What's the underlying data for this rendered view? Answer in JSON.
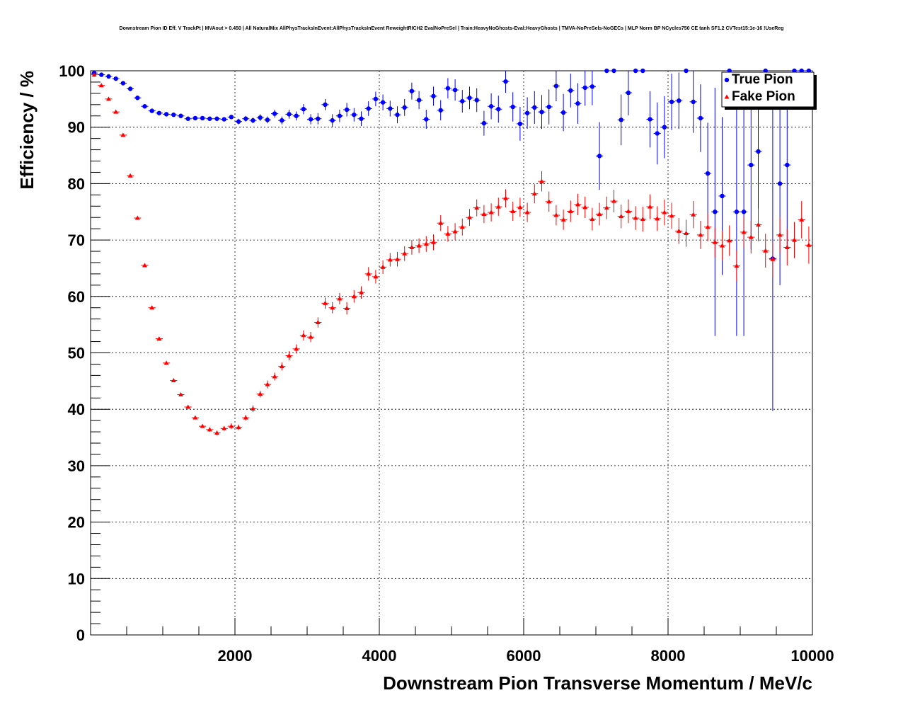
{
  "chart_data": {
    "type": "scatter",
    "title": "Downstream Pion ID Eff. V TrackPt | MVAout > 0.450 | All NaturalMix AllPhysTracksInEvent:AllPhysTracksInEvent ReweightRICH2 EvalNoPreSel | Train:HeavyNoGhosts-Eval:HeavyGhosts | TMVA-NoPreSels-NoGECs | MLP Norm BP NCycles750 CE tanh SF1.2 CVTest15:1e-16 !UseReg",
    "xlabel": "Downstream Pion Transverse Momentum / MeV/c",
    "ylabel": "Efficiency / %",
    "xlim": [
      0,
      10000
    ],
    "ylim": [
      0,
      100
    ],
    "x_ticks": [
      2000,
      4000,
      6000,
      8000,
      10000
    ],
    "y_ticks": [
      0,
      10,
      20,
      30,
      40,
      50,
      60,
      70,
      80,
      90,
      100
    ],
    "grid": true,
    "legend_position": "top-right",
    "colors": {
      "true_pion": "#0000ff",
      "fake_pion": "#ff0000"
    },
    "series": [
      {
        "name": "True Pion",
        "marker": "circle",
        "color": "#0000ff",
        "points": [
          {
            "x": 50,
            "y": 99.6,
            "err": 0
          },
          {
            "x": 150,
            "y": 99.3,
            "err": 0
          },
          {
            "x": 250,
            "y": 99.0,
            "err": 0
          },
          {
            "x": 350,
            "y": 98.6,
            "err": 0
          },
          {
            "x": 450,
            "y": 97.8,
            "err": 0
          },
          {
            "x": 550,
            "y": 96.8,
            "err": 0
          },
          {
            "x": 650,
            "y": 95.2,
            "err": 0
          },
          {
            "x": 750,
            "y": 93.7,
            "err": 0.3
          },
          {
            "x": 850,
            "y": 92.9,
            "err": 0.3
          },
          {
            "x": 950,
            "y": 92.5,
            "err": 0.3
          },
          {
            "x": 1050,
            "y": 92.3,
            "err": 0.3
          },
          {
            "x": 1150,
            "y": 92.2,
            "err": 0.3
          },
          {
            "x": 1250,
            "y": 92.0,
            "err": 0.3
          },
          {
            "x": 1350,
            "y": 91.5,
            "err": 0.3
          },
          {
            "x": 1450,
            "y": 91.6,
            "err": 0.3
          },
          {
            "x": 1550,
            "y": 91.6,
            "err": 0.3
          },
          {
            "x": 1650,
            "y": 91.5,
            "err": 0.3
          },
          {
            "x": 1750,
            "y": 91.5,
            "err": 0.3
          },
          {
            "x": 1850,
            "y": 91.4,
            "err": 0.3
          },
          {
            "x": 1950,
            "y": 91.8,
            "err": 0.4
          },
          {
            "x": 2050,
            "y": 91.0,
            "err": 0.5
          },
          {
            "x": 2150,
            "y": 91.5,
            "err": 0.5
          },
          {
            "x": 2250,
            "y": 91.2,
            "err": 0.5
          },
          {
            "x": 2350,
            "y": 91.7,
            "err": 0.6
          },
          {
            "x": 2450,
            "y": 91.3,
            "err": 0.6
          },
          {
            "x": 2550,
            "y": 92.4,
            "err": 0.7
          },
          {
            "x": 2650,
            "y": 91.2,
            "err": 0.7
          },
          {
            "x": 2750,
            "y": 92.3,
            "err": 0.8
          },
          {
            "x": 2850,
            "y": 92.0,
            "err": 0.8
          },
          {
            "x": 2950,
            "y": 93.2,
            "err": 0.9
          },
          {
            "x": 3050,
            "y": 91.4,
            "err": 0.9
          },
          {
            "x": 3150,
            "y": 91.5,
            "err": 1.0
          },
          {
            "x": 3250,
            "y": 94.0,
            "err": 1.0
          },
          {
            "x": 3350,
            "y": 91.2,
            "err": 1.1
          },
          {
            "x": 3450,
            "y": 92.0,
            "err": 1.1
          },
          {
            "x": 3550,
            "y": 93.1,
            "err": 1.2
          },
          {
            "x": 3650,
            "y": 92.2,
            "err": 1.2
          },
          {
            "x": 3750,
            "y": 91.5,
            "err": 1.3
          },
          {
            "x": 3850,
            "y": 93.3,
            "err": 1.3
          },
          {
            "x": 3950,
            "y": 95.0,
            "err": 1.3
          },
          {
            "x": 4050,
            "y": 94.4,
            "err": 1.4
          },
          {
            "x": 4150,
            "y": 93.3,
            "err": 1.4
          },
          {
            "x": 4250,
            "y": 92.2,
            "err": 1.5
          },
          {
            "x": 4350,
            "y": 93.5,
            "err": 1.5
          },
          {
            "x": 4450,
            "y": 96.4,
            "err": 1.5
          },
          {
            "x": 4550,
            "y": 94.8,
            "err": 1.6
          },
          {
            "x": 4650,
            "y": 91.4,
            "err": 1.7
          },
          {
            "x": 4750,
            "y": 95.5,
            "err": 1.7
          },
          {
            "x": 4850,
            "y": 93.0,
            "err": 1.8
          },
          {
            "x": 4950,
            "y": 96.9,
            "err": 1.8
          },
          {
            "x": 5050,
            "y": 96.6,
            "err": 1.9
          },
          {
            "x": 5150,
            "y": 94.6,
            "err": 2.0
          },
          {
            "x": 5250,
            "y": 95.2,
            "err": 2.0
          },
          {
            "x": 5350,
            "y": 94.8,
            "err": 2.1
          },
          {
            "x": 5450,
            "y": 90.7,
            "err": 2.2
          },
          {
            "x": 5550,
            "y": 93.7,
            "err": 2.3
          },
          {
            "x": 5650,
            "y": 93.2,
            "err": 2.4
          },
          {
            "x": 5750,
            "y": 98.1,
            "err": 2.0
          },
          {
            "x": 5850,
            "y": 93.6,
            "err": 2.6
          },
          {
            "x": 5950,
            "y": 90.6,
            "err": 3.0
          },
          {
            "x": 6050,
            "y": 92.5,
            "err": 2.8
          },
          {
            "x": 6150,
            "y": 93.5,
            "err": 2.9
          },
          {
            "x": 6250,
            "y": 92.7,
            "err": 3.0
          },
          {
            "x": 6350,
            "y": 93.6,
            "err": 3.1
          },
          {
            "x": 6450,
            "y": 97.3,
            "err": 2.7
          },
          {
            "x": 6550,
            "y": 92.6,
            "err": 3.3
          },
          {
            "x": 6650,
            "y": 96.5,
            "err": 3.0
          },
          {
            "x": 6750,
            "y": 94.2,
            "err": 3.6
          },
          {
            "x": 6850,
            "y": 97.0,
            "err": 3.2
          },
          {
            "x": 6950,
            "y": 97.2,
            "err": 3.3
          },
          {
            "x": 7050,
            "y": 84.9,
            "err": 6.0
          },
          {
            "x": 7150,
            "y": 100.0,
            "err": 0
          },
          {
            "x": 7250,
            "y": 100.0,
            "err": 0
          },
          {
            "x": 7350,
            "y": 91.3,
            "err": 4.5
          },
          {
            "x": 7450,
            "y": 96.1,
            "err": 4.0
          },
          {
            "x": 7550,
            "y": 100.0,
            "err": 0
          },
          {
            "x": 7650,
            "y": 100.0,
            "err": 0
          },
          {
            "x": 7750,
            "y": 91.4,
            "err": 5.0
          },
          {
            "x": 7850,
            "y": 88.9,
            "err": 5.5
          },
          {
            "x": 7950,
            "y": 90.0,
            "err": 5.5
          },
          {
            "x": 8050,
            "y": 94.5,
            "err": 5.0
          },
          {
            "x": 8150,
            "y": 94.7,
            "err": 5.0
          },
          {
            "x": 8250,
            "y": 100.0,
            "err": 0
          },
          {
            "x": 8350,
            "y": 94.5,
            "err": 5.5
          },
          {
            "x": 8450,
            "y": 91.6,
            "err": 6.0
          },
          {
            "x": 8550,
            "y": 81.8,
            "err": 9.0
          },
          {
            "x": 8650,
            "y": 75.0,
            "err": 22.0
          },
          {
            "x": 8750,
            "y": 77.8,
            "err": 14.0
          },
          {
            "x": 8850,
            "y": 100.0,
            "err": 0
          },
          {
            "x": 8950,
            "y": 75.0,
            "err": 22.0
          },
          {
            "x": 9050,
            "y": 75.0,
            "err": 22.0
          },
          {
            "x": 9150,
            "y": 83.3,
            "err": 15.0
          },
          {
            "x": 9250,
            "y": 85.7,
            "err": 13.0
          },
          {
            "x": 9350,
            "y": 100.0,
            "err": 0
          },
          {
            "x": 9450,
            "y": 66.7,
            "err": 27.0
          },
          {
            "x": 9550,
            "y": 80.0,
            "err": 18.0
          },
          {
            "x": 9650,
            "y": 83.3,
            "err": 15.0
          },
          {
            "x": 9750,
            "y": 100.0,
            "err": 0
          },
          {
            "x": 9850,
            "y": 100.0,
            "err": 0
          },
          {
            "x": 9950,
            "y": 100.0,
            "err": 0
          }
        ]
      },
      {
        "name": "Fake Pion",
        "marker": "triangle",
        "color": "#ff0000",
        "points": [
          {
            "x": 50,
            "y": 99.3,
            "err": 0.4
          },
          {
            "x": 150,
            "y": 97.4,
            "err": 0.3
          },
          {
            "x": 250,
            "y": 95.0,
            "err": 0.3
          },
          {
            "x": 350,
            "y": 92.7,
            "err": 0.3
          },
          {
            "x": 450,
            "y": 88.6,
            "err": 0.3
          },
          {
            "x": 550,
            "y": 81.4,
            "err": 0.3
          },
          {
            "x": 650,
            "y": 73.9,
            "err": 0.3
          },
          {
            "x": 750,
            "y": 65.5,
            "err": 0.3
          },
          {
            "x": 850,
            "y": 58.0,
            "err": 0.3
          },
          {
            "x": 950,
            "y": 52.5,
            "err": 0.3
          },
          {
            "x": 1050,
            "y": 48.2,
            "err": 0.3
          },
          {
            "x": 1150,
            "y": 45.1,
            "err": 0.3
          },
          {
            "x": 1250,
            "y": 42.6,
            "err": 0.3
          },
          {
            "x": 1350,
            "y": 40.4,
            "err": 0.3
          },
          {
            "x": 1450,
            "y": 38.5,
            "err": 0.3
          },
          {
            "x": 1550,
            "y": 37.0,
            "err": 0.3
          },
          {
            "x": 1650,
            "y": 36.4,
            "err": 0.4
          },
          {
            "x": 1750,
            "y": 35.8,
            "err": 0.4
          },
          {
            "x": 1850,
            "y": 36.6,
            "err": 0.4
          },
          {
            "x": 1950,
            "y": 37.0,
            "err": 0.5
          },
          {
            "x": 2050,
            "y": 36.8,
            "err": 0.5
          },
          {
            "x": 2150,
            "y": 38.5,
            "err": 0.5
          },
          {
            "x": 2250,
            "y": 40.1,
            "err": 0.6
          },
          {
            "x": 2350,
            "y": 42.7,
            "err": 0.6
          },
          {
            "x": 2450,
            "y": 44.4,
            "err": 0.7
          },
          {
            "x": 2550,
            "y": 45.8,
            "err": 0.7
          },
          {
            "x": 2650,
            "y": 47.6,
            "err": 0.7
          },
          {
            "x": 2750,
            "y": 49.5,
            "err": 0.8
          },
          {
            "x": 2850,
            "y": 50.7,
            "err": 0.8
          },
          {
            "x": 2950,
            "y": 53.1,
            "err": 0.9
          },
          {
            "x": 3050,
            "y": 52.8,
            "err": 0.9
          },
          {
            "x": 3150,
            "y": 55.4,
            "err": 0.9
          },
          {
            "x": 3250,
            "y": 58.8,
            "err": 1.0
          },
          {
            "x": 3350,
            "y": 58.0,
            "err": 1.0
          },
          {
            "x": 3450,
            "y": 59.6,
            "err": 1.0
          },
          {
            "x": 3550,
            "y": 57.9,
            "err": 1.1
          },
          {
            "x": 3650,
            "y": 60.0,
            "err": 1.1
          },
          {
            "x": 3750,
            "y": 60.7,
            "err": 1.1
          },
          {
            "x": 3850,
            "y": 64.0,
            "err": 1.2
          },
          {
            "x": 3950,
            "y": 63.5,
            "err": 1.2
          },
          {
            "x": 4050,
            "y": 65.2,
            "err": 1.2
          },
          {
            "x": 4150,
            "y": 66.5,
            "err": 1.2
          },
          {
            "x": 4250,
            "y": 66.6,
            "err": 1.3
          },
          {
            "x": 4350,
            "y": 67.6,
            "err": 1.3
          },
          {
            "x": 4450,
            "y": 68.7,
            "err": 1.3
          },
          {
            "x": 4550,
            "y": 69.0,
            "err": 1.3
          },
          {
            "x": 4650,
            "y": 69.3,
            "err": 1.4
          },
          {
            "x": 4750,
            "y": 69.6,
            "err": 1.4
          },
          {
            "x": 4850,
            "y": 73.0,
            "err": 1.4
          },
          {
            "x": 4950,
            "y": 71.1,
            "err": 1.4
          },
          {
            "x": 5050,
            "y": 71.5,
            "err": 1.5
          },
          {
            "x": 5150,
            "y": 72.3,
            "err": 1.5
          },
          {
            "x": 5250,
            "y": 74.0,
            "err": 1.5
          },
          {
            "x": 5350,
            "y": 75.7,
            "err": 1.5
          },
          {
            "x": 5450,
            "y": 74.6,
            "err": 1.6
          },
          {
            "x": 5550,
            "y": 74.9,
            "err": 1.6
          },
          {
            "x": 5650,
            "y": 75.9,
            "err": 1.6
          },
          {
            "x": 5750,
            "y": 77.4,
            "err": 1.6
          },
          {
            "x": 5850,
            "y": 75.1,
            "err": 1.7
          },
          {
            "x": 5950,
            "y": 75.8,
            "err": 1.7
          },
          {
            "x": 6050,
            "y": 74.9,
            "err": 1.7
          },
          {
            "x": 6150,
            "y": 78.2,
            "err": 1.7
          },
          {
            "x": 6250,
            "y": 80.4,
            "err": 1.8
          },
          {
            "x": 6350,
            "y": 76.8,
            "err": 1.8
          },
          {
            "x": 6450,
            "y": 74.4,
            "err": 1.8
          },
          {
            "x": 6550,
            "y": 73.6,
            "err": 1.8
          },
          {
            "x": 6650,
            "y": 75.1,
            "err": 1.9
          },
          {
            "x": 6750,
            "y": 76.3,
            "err": 1.9
          },
          {
            "x": 6850,
            "y": 75.8,
            "err": 1.9
          },
          {
            "x": 6950,
            "y": 73.7,
            "err": 2.0
          },
          {
            "x": 7050,
            "y": 74.6,
            "err": 2.0
          },
          {
            "x": 7150,
            "y": 75.7,
            "err": 2.0
          },
          {
            "x": 7250,
            "y": 76.9,
            "err": 2.0
          },
          {
            "x": 7350,
            "y": 74.2,
            "err": 2.1
          },
          {
            "x": 7450,
            "y": 75.1,
            "err": 2.1
          },
          {
            "x": 7550,
            "y": 73.9,
            "err": 2.1
          },
          {
            "x": 7650,
            "y": 73.7,
            "err": 2.2
          },
          {
            "x": 7750,
            "y": 75.9,
            "err": 2.2
          },
          {
            "x": 7850,
            "y": 73.8,
            "err": 2.2
          },
          {
            "x": 7950,
            "y": 74.9,
            "err": 2.3
          },
          {
            "x": 8050,
            "y": 74.3,
            "err": 2.3
          },
          {
            "x": 8150,
            "y": 71.6,
            "err": 2.3
          },
          {
            "x": 8250,
            "y": 71.2,
            "err": 2.4
          },
          {
            "x": 8350,
            "y": 74.5,
            "err": 2.4
          },
          {
            "x": 8450,
            "y": 70.9,
            "err": 2.5
          },
          {
            "x": 8550,
            "y": 72.3,
            "err": 2.5
          },
          {
            "x": 8650,
            "y": 69.6,
            "err": 2.6
          },
          {
            "x": 8750,
            "y": 69.0,
            "err": 2.6
          },
          {
            "x": 8850,
            "y": 69.9,
            "err": 2.7
          },
          {
            "x": 8950,
            "y": 65.4,
            "err": 2.8
          },
          {
            "x": 9050,
            "y": 71.4,
            "err": 2.8
          },
          {
            "x": 9150,
            "y": 70.5,
            "err": 2.9
          },
          {
            "x": 9250,
            "y": 72.7,
            "err": 2.9
          },
          {
            "x": 9350,
            "y": 68.1,
            "err": 3.0
          },
          {
            "x": 9450,
            "y": 66.6,
            "err": 3.1
          },
          {
            "x": 9550,
            "y": 70.9,
            "err": 3.1
          },
          {
            "x": 9650,
            "y": 68.7,
            "err": 3.2
          },
          {
            "x": 9750,
            "y": 70.0,
            "err": 3.2
          },
          {
            "x": 9850,
            "y": 73.6,
            "err": 3.3
          },
          {
            "x": 9950,
            "y": 69.1,
            "err": 3.3
          }
        ]
      }
    ]
  }
}
